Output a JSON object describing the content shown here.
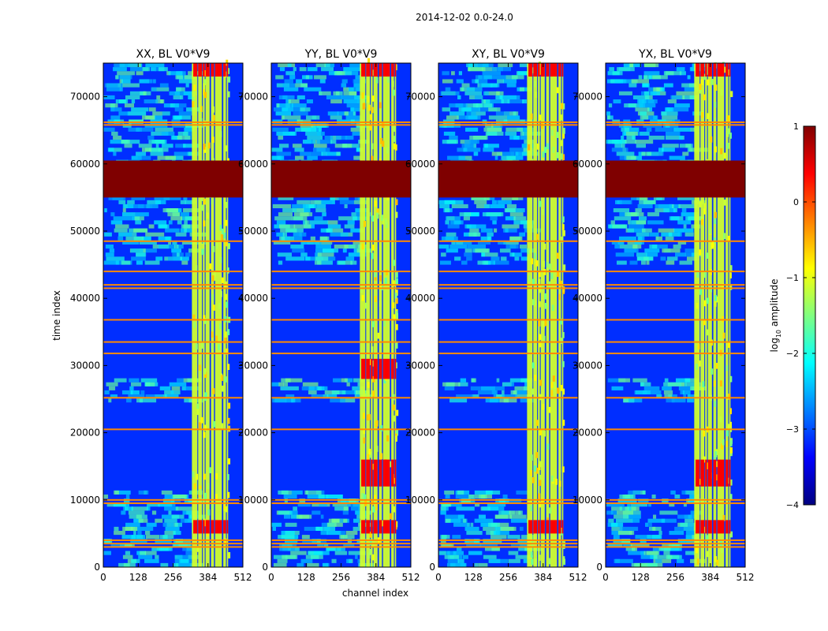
{
  "figure": {
    "suptitle": "2014-12-02 0.0-24.0",
    "ylabel": "time index",
    "xlabel": "channel index"
  },
  "colors": {
    "jet": [
      "#00007f",
      "#0000ff",
      "#007fff",
      "#00ffff",
      "#7fff7f",
      "#ffff00",
      "#ff7f00",
      "#ff0000",
      "#7f0000"
    ],
    "background": "#1a3cff",
    "saturated": "#7f0000"
  },
  "colorbar": {
    "label": "log10 amplitude",
    "label_main": "log",
    "label_sub": "10",
    "label_rest": " amplitude",
    "range": [
      -4,
      1
    ],
    "ticks": [
      1,
      0,
      -1,
      -2,
      -3,
      -4
    ],
    "tick_labels": [
      "1",
      "0",
      "−1",
      "−2",
      "−3",
      "−4"
    ],
    "colormap": "jet"
  },
  "chart_data": [
    {
      "type": "heatmap",
      "title": "XX, BL V0*V9",
      "xlim": [
        0,
        512
      ],
      "ylim": [
        0,
        75000
      ],
      "xticks": [
        0,
        128,
        256,
        384,
        512
      ],
      "xtick_labels": [
        "0",
        "128",
        "256",
        "384",
        "512"
      ],
      "yticks": [
        0,
        10000,
        20000,
        30000,
        40000,
        50000,
        60000,
        70000
      ],
      "ytick_labels": [
        "0",
        "10000",
        "20000",
        "30000",
        "40000",
        "50000",
        "60000",
        "70000"
      ],
      "background_log10_amplitude": -3,
      "rfi_channels": [
        [
          325,
          345
        ],
        [
          348,
          362
        ],
        [
          365,
          372
        ],
        [
          375,
          390
        ],
        [
          395,
          406
        ],
        [
          410,
          435
        ],
        [
          440,
          450
        ],
        [
          453,
          458
        ]
      ],
      "saturated_time_range": [
        55000,
        60500
      ],
      "flagged_time_rows": [
        3000,
        3500,
        4000,
        9500,
        10000,
        20500,
        25200,
        31800,
        33500,
        36800,
        41500,
        42000,
        44000,
        48500,
        65800,
        66200
      ],
      "active_time_ranges": [
        [
          0,
          11000
        ],
        [
          24500,
          28000
        ],
        [
          45000,
          75000
        ]
      ],
      "hot_spots": [
        [
          330,
          470,
          5000,
          7000
        ],
        [
          330,
          470,
          73000,
          75000
        ]
      ]
    },
    {
      "type": "heatmap",
      "title": "YY, BL V0*V9",
      "xlim": [
        0,
        512
      ],
      "ylim": [
        0,
        75000
      ],
      "xticks": [
        0,
        128,
        256,
        384,
        512
      ],
      "xtick_labels": [
        "0",
        "128",
        "256",
        "384",
        "512"
      ],
      "yticks": [
        0,
        10000,
        20000,
        30000,
        40000,
        50000,
        60000,
        70000
      ],
      "ytick_labels": [
        "0",
        "10000",
        "20000",
        "30000",
        "40000",
        "50000",
        "60000",
        "70000"
      ],
      "background_log10_amplitude": -3,
      "rfi_channels": [
        [
          325,
          345
        ],
        [
          348,
          362
        ],
        [
          365,
          372
        ],
        [
          375,
          390
        ],
        [
          395,
          406
        ],
        [
          410,
          435
        ],
        [
          440,
          450
        ],
        [
          453,
          458
        ]
      ],
      "saturated_time_range": [
        55000,
        60500
      ],
      "flagged_time_rows": [
        3000,
        3500,
        4000,
        9500,
        10000,
        20500,
        25200,
        31800,
        33500,
        36800,
        41500,
        42000,
        44000,
        48500,
        65800,
        66200
      ],
      "active_time_ranges": [
        [
          0,
          11000
        ],
        [
          24500,
          28000
        ],
        [
          45000,
          75000
        ]
      ],
      "hot_spots": [
        [
          330,
          470,
          5000,
          7000
        ],
        [
          330,
          470,
          12000,
          16000
        ],
        [
          330,
          470,
          28000,
          31000
        ],
        [
          330,
          470,
          73000,
          75000
        ]
      ]
    },
    {
      "type": "heatmap",
      "title": "XY, BL V0*V9",
      "xlim": [
        0,
        512
      ],
      "ylim": [
        0,
        75000
      ],
      "xticks": [
        0,
        128,
        256,
        384,
        512
      ],
      "xtick_labels": [
        "0",
        "128",
        "256",
        "384",
        "512"
      ],
      "yticks": [
        0,
        10000,
        20000,
        30000,
        40000,
        50000,
        60000,
        70000
      ],
      "ytick_labels": [
        "0",
        "10000",
        "20000",
        "30000",
        "40000",
        "50000",
        "60000",
        "70000"
      ],
      "background_log10_amplitude": -3,
      "rfi_channels": [
        [
          325,
          345
        ],
        [
          348,
          362
        ],
        [
          365,
          372
        ],
        [
          375,
          390
        ],
        [
          395,
          406
        ],
        [
          410,
          435
        ],
        [
          440,
          450
        ],
        [
          453,
          458
        ]
      ],
      "saturated_time_range": [
        55000,
        60500
      ],
      "flagged_time_rows": [
        3000,
        3500,
        4000,
        9500,
        10000,
        20500,
        25200,
        31800,
        33500,
        36800,
        41500,
        42000,
        44000,
        48500,
        65800,
        66200
      ],
      "active_time_ranges": [
        [
          0,
          11000
        ],
        [
          24500,
          28000
        ],
        [
          45000,
          75000
        ]
      ],
      "hot_spots": [
        [
          330,
          470,
          5000,
          7000
        ],
        [
          330,
          470,
          73000,
          75000
        ]
      ]
    },
    {
      "type": "heatmap",
      "title": "YX, BL V0*V9",
      "xlim": [
        0,
        512
      ],
      "ylim": [
        0,
        75000
      ],
      "xticks": [
        0,
        128,
        256,
        384,
        512
      ],
      "xtick_labels": [
        "0",
        "128",
        "256",
        "384",
        "512"
      ],
      "yticks": [
        0,
        10000,
        20000,
        30000,
        40000,
        50000,
        60000,
        70000
      ],
      "ytick_labels": [
        "0",
        "10000",
        "20000",
        "30000",
        "40000",
        "50000",
        "60000",
        "70000"
      ],
      "background_log10_amplitude": -3,
      "rfi_channels": [
        [
          325,
          345
        ],
        [
          348,
          362
        ],
        [
          365,
          372
        ],
        [
          375,
          390
        ],
        [
          395,
          406
        ],
        [
          410,
          435
        ],
        [
          440,
          450
        ],
        [
          453,
          458
        ]
      ],
      "saturated_time_range": [
        55000,
        60500
      ],
      "flagged_time_rows": [
        3000,
        3500,
        4000,
        9500,
        10000,
        20500,
        25200,
        31800,
        33500,
        36800,
        41500,
        42000,
        44000,
        48500,
        65800,
        66200
      ],
      "active_time_ranges": [
        [
          0,
          11000
        ],
        [
          24500,
          28000
        ],
        [
          45000,
          75000
        ]
      ],
      "hot_spots": [
        [
          330,
          470,
          5000,
          7000
        ],
        [
          330,
          470,
          12000,
          16000
        ],
        [
          330,
          470,
          73000,
          75000
        ]
      ]
    }
  ]
}
